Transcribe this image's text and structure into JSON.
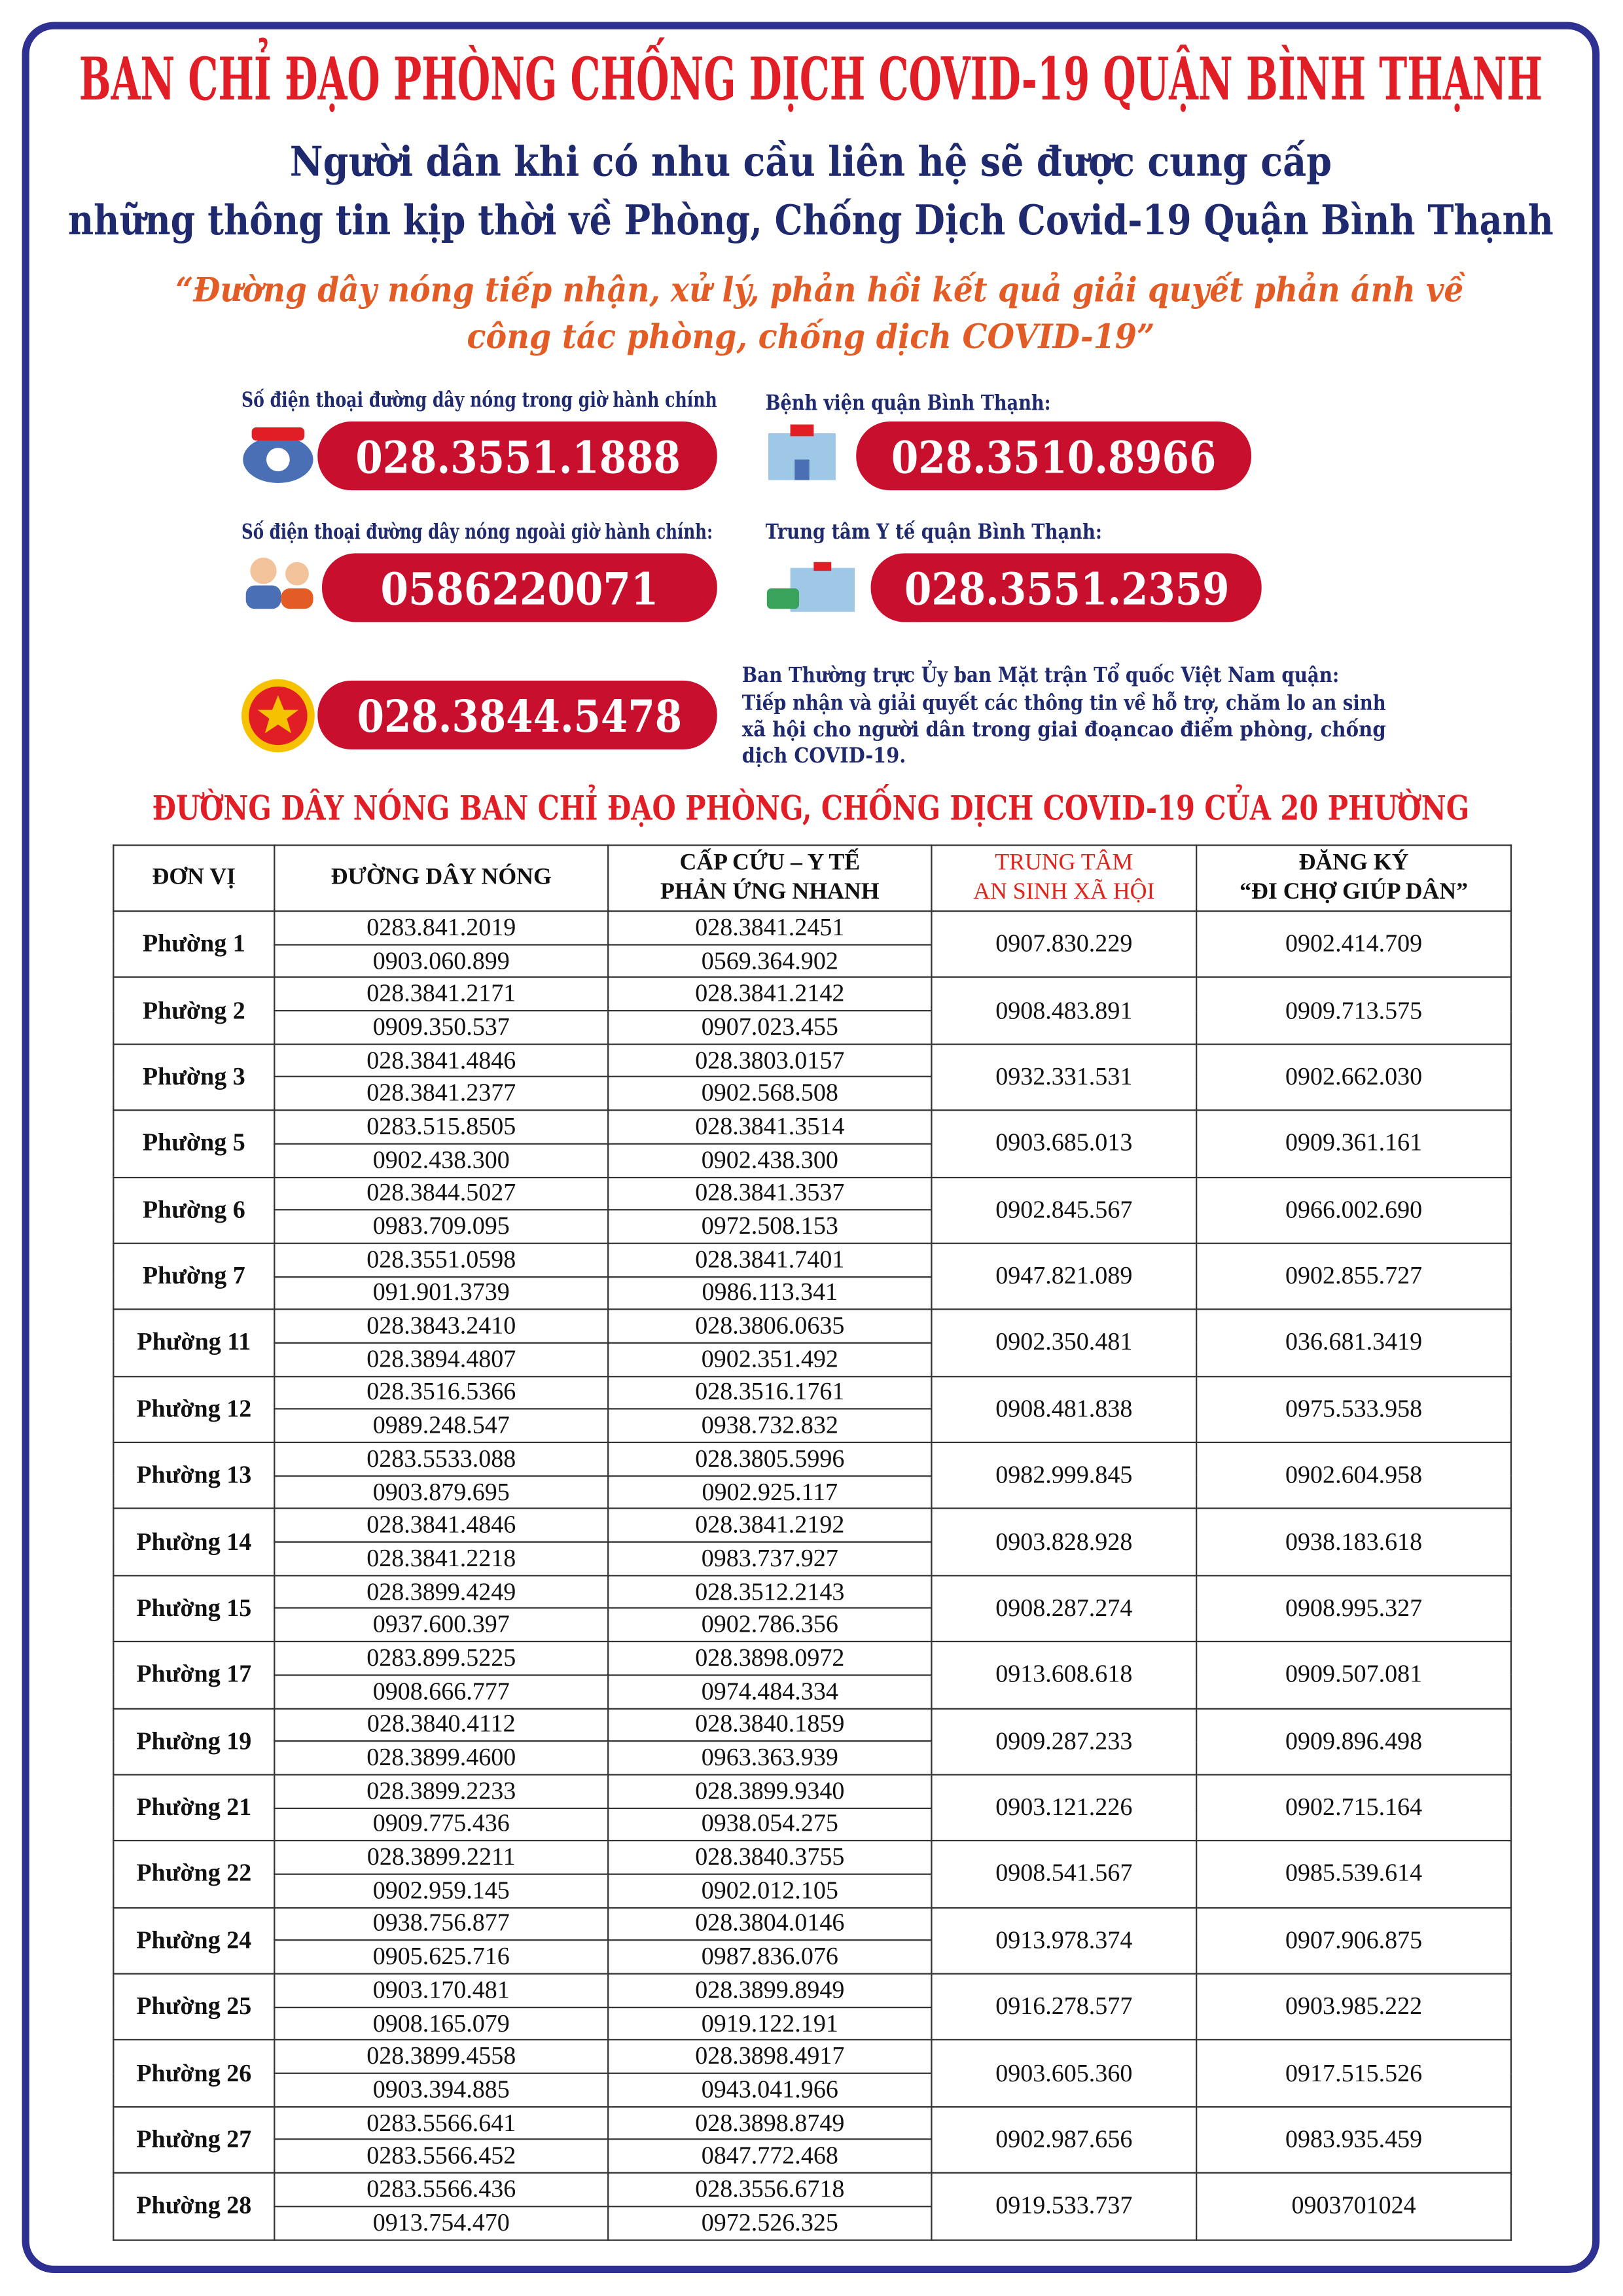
{
  "header": {
    "title": "BAN CHỈ ĐẠO PHÒNG CHỐNG DỊCH COVID-19 QUẬN BÌNH THẠNH",
    "subtitle": [
      "Người dân khi có nhu cầu liên hệ sẽ được cung cấp",
      "những thông tin kịp thời về Phòng, Chống Dịch Covid-19 Quận Bình Thạnh"
    ],
    "quote": [
      "“Đường dây nóng tiếp nhận, xử lý, phản hồi kết quả giải quyết phản ánh về",
      "công tác phòng, chống dịch COVID-19”"
    ]
  },
  "hotlines": [
    {
      "label": "Số điện thoại đường dây nóng trong giờ hành chính",
      "number": "028.3551.1888"
    },
    {
      "label": "Bệnh viện quận Bình Thạnh:",
      "number": "028.3510.8966"
    },
    {
      "label": "Số điện thoại đường dây nóng ngoài giờ hành chính:",
      "number": "0586220071"
    },
    {
      "label": "Trung tâm Y tế quận Bình Thạnh:",
      "number": "028.3551.2359"
    }
  ],
  "front": {
    "number": "028.3844.5478",
    "description": [
      "Ban Thường trực Ủy ban Mặt trận Tổ quốc Việt Nam quận:",
      "Tiếp nhận và giải quyết các thông tin về hỗ trợ, chăm lo an sinh",
      "xã hội cho người dân trong giai đoạncao điểm phòng, chống",
      "dịch COVID-19."
    ]
  },
  "table": {
    "title": "ĐƯỜNG DÂY NÓNG BAN CHỈ ĐẠO PHÒNG, CHỐNG DỊCH COVID-19 CỦA 20 PHƯỜNG",
    "headers": [
      [
        "ĐƠN VỊ"
      ],
      [
        "ĐƯỜNG DÂY NÓNG"
      ],
      [
        "CẤP CỨU – Y TẾ",
        "PHẢN ỨNG NHANH"
      ],
      [
        "TRUNG TÂM",
        "AN SINH XÃ HỘI"
      ],
      [
        "ĐĂNG KÝ",
        "“ĐI CHỢ GIÚP DÂN”"
      ]
    ],
    "rows": [
      {
        "ward": "Phường 1",
        "hotline": [
          "0283.841.2019",
          "0903.060.899"
        ],
        "emergency": [
          "028.3841.2451",
          "0569.364.902"
        ],
        "social": "0907.830.229",
        "market": "0902.414.709"
      },
      {
        "ward": "Phường 2",
        "hotline": [
          "028.3841.2171",
          "0909.350.537"
        ],
        "emergency": [
          "028.3841.2142",
          "0907.023.455"
        ],
        "social": "0908.483.891",
        "market": "0909.713.575"
      },
      {
        "ward": "Phường 3",
        "hotline": [
          "028.3841.4846",
          "028.3841.2377"
        ],
        "emergency": [
          "028.3803.0157",
          "0902.568.508"
        ],
        "social": "0932.331.531",
        "market": "0902.662.030"
      },
      {
        "ward": "Phường 5",
        "hotline": [
          "0283.515.8505",
          "0902.438.300"
        ],
        "emergency": [
          "028.3841.3514",
          "0902.438.300"
        ],
        "social": "0903.685.013",
        "market": "0909.361.161"
      },
      {
        "ward": "Phường 6",
        "hotline": [
          "028.3844.5027",
          "0983.709.095"
        ],
        "emergency": [
          "028.3841.3537",
          "0972.508.153"
        ],
        "social": "0902.845.567",
        "market": "0966.002.690"
      },
      {
        "ward": "Phường 7",
        "hotline": [
          "028.3551.0598",
          "091.901.3739"
        ],
        "emergency": [
          "028.3841.7401",
          "0986.113.341"
        ],
        "social": "0947.821.089",
        "market": "0902.855.727"
      },
      {
        "ward": "Phường 11",
        "hotline": [
          "028.3843.2410",
          "028.3894.4807"
        ],
        "emergency": [
          "028.3806.0635",
          "0902.351.492"
        ],
        "social": "0902.350.481",
        "market": "036.681.3419"
      },
      {
        "ward": "Phường 12",
        "hotline": [
          "028.3516.5366",
          "0989.248.547"
        ],
        "emergency": [
          "028.3516.1761",
          "0938.732.832"
        ],
        "social": "0908.481.838",
        "market": "0975.533.958"
      },
      {
        "ward": "Phường 13",
        "hotline": [
          "0283.5533.088",
          "0903.879.695"
        ],
        "emergency": [
          "028.3805.5996",
          "0902.925.117"
        ],
        "social": "0982.999.845",
        "market": "0902.604.958"
      },
      {
        "ward": "Phường 14",
        "hotline": [
          "028.3841.4846",
          "028.3841.2218"
        ],
        "emergency": [
          "028.3841.2192",
          "0983.737.927"
        ],
        "social": "0903.828.928",
        "market": "0938.183.618"
      },
      {
        "ward": "Phường 15",
        "hotline": [
          "028.3899.4249",
          "0937.600.397"
        ],
        "emergency": [
          "028.3512.2143",
          "0902.786.356"
        ],
        "social": "0908.287.274",
        "market": "0908.995.327"
      },
      {
        "ward": "Phường 17",
        "hotline": [
          "0283.899.5225",
          "0908.666.777"
        ],
        "emergency": [
          "028.3898.0972",
          "0974.484.334"
        ],
        "social": "0913.608.618",
        "market": "0909.507.081"
      },
      {
        "ward": "Phường 19",
        "hotline": [
          "028.3840.4112",
          "028.3899.4600"
        ],
        "emergency": [
          "028.3840.1859",
          "0963.363.939"
        ],
        "social": "0909.287.233",
        "market": "0909.896.498"
      },
      {
        "ward": "Phường 21",
        "hotline": [
          "028.3899.2233",
          "0909.775.436"
        ],
        "emergency": [
          "028.3899.9340",
          "0938.054.275"
        ],
        "social": "0903.121.226",
        "market": "0902.715.164"
      },
      {
        "ward": "Phường 22",
        "hotline": [
          "028.3899.2211",
          "0902.959.145"
        ],
        "emergency": [
          "028.3840.3755",
          "0902.012.105"
        ],
        "social": "0908.541.567",
        "market": "0985.539.614"
      },
      {
        "ward": "Phường 24",
        "hotline": [
          "0938.756.877",
          "0905.625.716"
        ],
        "emergency": [
          "028.3804.0146",
          "0987.836.076"
        ],
        "social": "0913.978.374",
        "market": "0907.906.875"
      },
      {
        "ward": "Phường 25",
        "hotline": [
          "0903.170.481",
          "0908.165.079"
        ],
        "emergency": [
          "028.3899.8949",
          "0919.122.191"
        ],
        "social": "0916.278.577",
        "market": "0903.985.222"
      },
      {
        "ward": "Phường 26",
        "hotline": [
          "028.3899.4558",
          "0903.394.885"
        ],
        "emergency": [
          "028.3898.4917",
          "0943.041.966"
        ],
        "social": "0903.605.360",
        "market": "0917.515.526"
      },
      {
        "ward": "Phường 27",
        "hotline": [
          "0283.5566.641",
          "0283.5566.452"
        ],
        "emergency": [
          "028.3898.8749",
          "0847.772.468"
        ],
        "social": "0902.987.656",
        "market": "0983.935.459"
      },
      {
        "ward": "Phường 28",
        "hotline": [
          "0283.5566.436",
          "0913.754.470"
        ],
        "emergency": [
          "028.3556.6718",
          "0972.526.325"
        ],
        "social": "0919.533.737",
        "market": "0903701024"
      }
    ]
  }
}
